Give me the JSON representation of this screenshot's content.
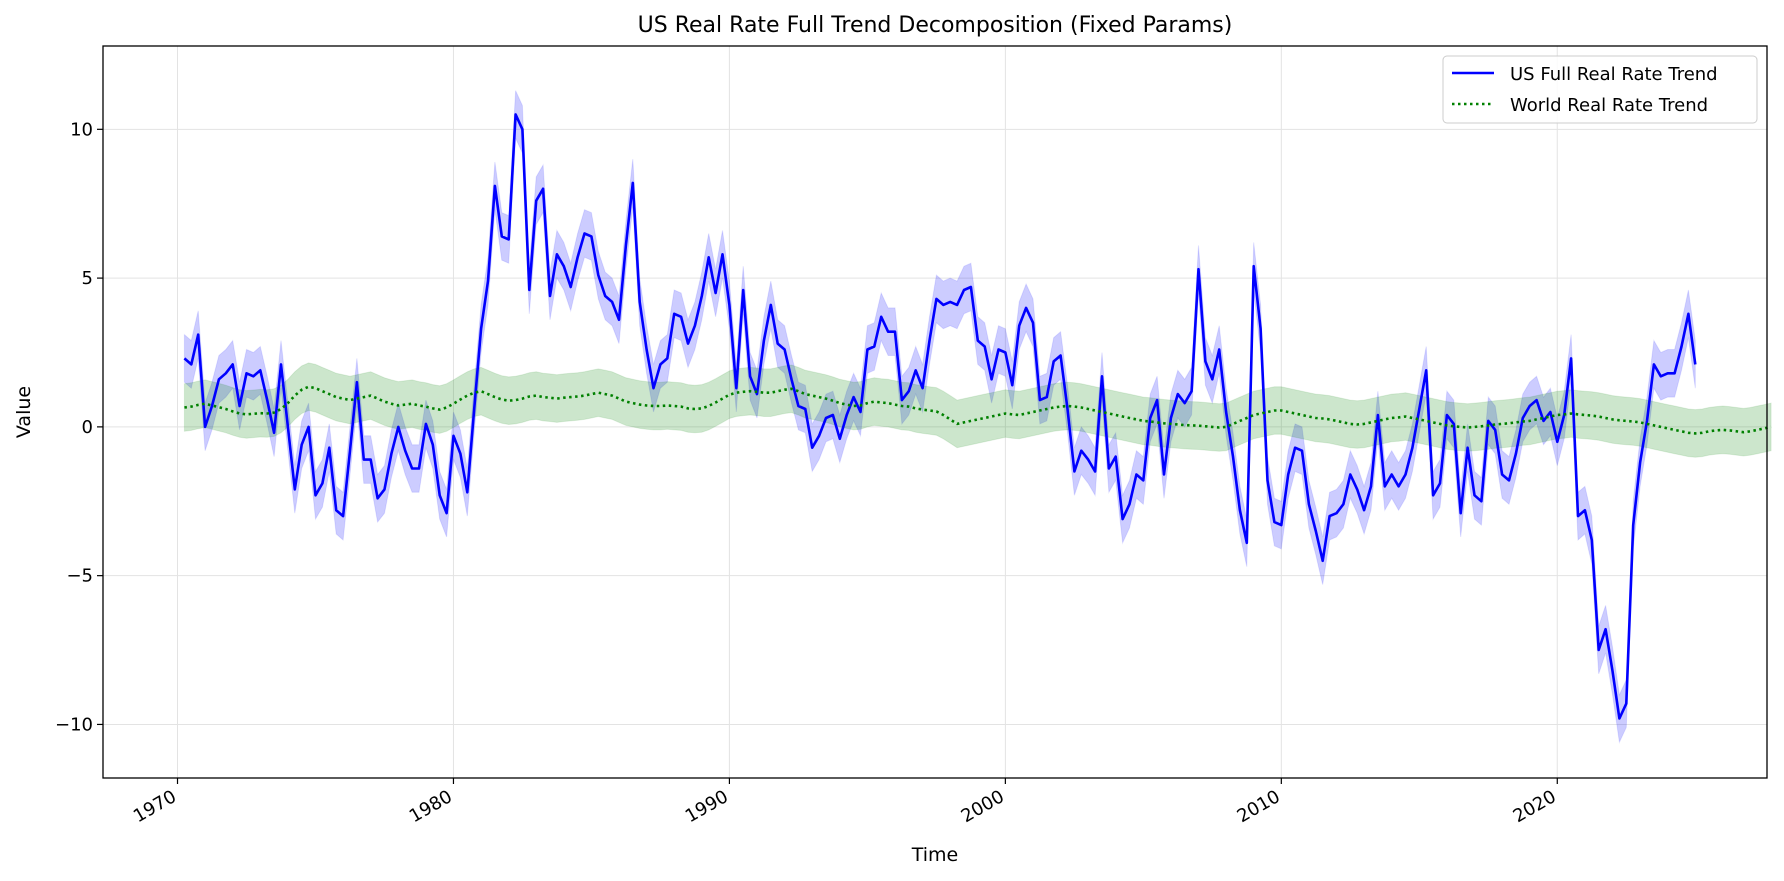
{
  "chart_data": {
    "type": "line",
    "title": "US Real Rate Full Trend Decomposition (Fixed Params)",
    "xlabel": "Time",
    "ylabel": "Value",
    "xlim": [
      1967.3,
      2027.6
    ],
    "ylim": [
      -11.8,
      12.8
    ],
    "x_ticks": [
      1970,
      1980,
      1990,
      2000,
      2010,
      2020
    ],
    "x_tick_labels": [
      "1970",
      "1980",
      "1990",
      "2000",
      "2010",
      "2020"
    ],
    "y_ticks": [
      -10,
      -5,
      0,
      5,
      10
    ],
    "y_tick_labels": [
      "−10",
      "−5",
      "0",
      "5",
      "10"
    ],
    "grid": true,
    "legend_position": "top-right",
    "colors": {
      "us": "#0000ff",
      "us_band": "#0000ff",
      "world": "#008000",
      "world_band": "#008000"
    },
    "series": [
      {
        "name": "US Full Real Rate Trend",
        "style": "solid",
        "color": "#0000ff",
        "x_start": 1970.25,
        "x_step": 0.25,
        "band_half_width": 0.8,
        "values": [
          2.3,
          2.1,
          3.1,
          0.0,
          0.7,
          1.6,
          1.8,
          2.1,
          0.7,
          1.8,
          1.7,
          1.9,
          0.9,
          -0.2,
          2.1,
          0.0,
          -2.1,
          -0.6,
          0.0,
          -2.3,
          -1.9,
          -0.7,
          -2.8,
          -3.0,
          -0.8,
          1.5,
          -1.1,
          -1.1,
          -2.4,
          -2.1,
          -0.9,
          0.0,
          -0.8,
          -1.4,
          -1.4,
          0.1,
          -0.6,
          -2.3,
          -2.9,
          -0.3,
          -0.9,
          -2.2,
          0.6,
          3.3,
          4.9,
          8.1,
          6.4,
          6.3,
          10.5,
          10.0,
          4.6,
          7.6,
          8.0,
          4.4,
          5.8,
          5.4,
          4.7,
          5.7,
          6.5,
          6.4,
          5.1,
          4.4,
          4.2,
          3.6,
          6.1,
          8.2,
          4.2,
          2.6,
          1.3,
          2.1,
          2.3,
          3.8,
          3.7,
          2.8,
          3.4,
          4.4,
          5.7,
          4.5,
          5.8,
          4.1,
          1.3,
          4.6,
          1.7,
          1.1,
          2.9,
          4.1,
          2.8,
          2.6,
          1.6,
          0.7,
          0.6,
          -0.7,
          -0.3,
          0.3,
          0.4,
          -0.4,
          0.4,
          1.0,
          0.5,
          2.6,
          2.7,
          3.7,
          3.2,
          3.2,
          0.9,
          1.2,
          1.9,
          1.3,
          2.9,
          4.3,
          4.1,
          4.2,
          4.1,
          4.6,
          4.7,
          2.9,
          2.7,
          1.6,
          2.6,
          2.5,
          1.4,
          3.4,
          4.0,
          3.5,
          0.9,
          1.0,
          2.2,
          2.4,
          0.6,
          -1.5,
          -0.8,
          -1.1,
          -1.5,
          1.7,
          -1.4,
          -1.0,
          -3.1,
          -2.6,
          -1.6,
          -1.8,
          0.3,
          0.9,
          -1.6,
          0.3,
          1.1,
          0.8,
          1.2,
          5.3,
          2.2,
          1.6,
          2.6,
          0.5,
          -1.0,
          -2.8,
          -3.9,
          5.4,
          3.3,
          -1.8,
          -3.2,
          -3.3,
          -1.6,
          -0.7,
          -0.8,
          -2.6,
          -3.5,
          -4.5,
          -3.0,
          -2.9,
          -2.6,
          -1.6,
          -2.1,
          -2.8,
          -2.0,
          0.4,
          -2.0,
          -1.6,
          -2.0,
          -1.6,
          -0.7,
          0.6,
          1.9,
          -2.3,
          -1.9,
          0.4,
          0.1,
          -2.9,
          -0.7,
          -2.3,
          -2.5,
          0.2,
          -0.1,
          -1.6,
          -1.8,
          -0.9,
          0.3,
          0.7,
          0.9,
          0.2,
          0.5,
          -0.5,
          0.4,
          2.3,
          -3.0,
          -2.8,
          -3.8,
          -7.5,
          -6.8,
          -8.2,
          -9.8,
          -9.3,
          -3.3,
          -1.2,
          0.2,
          2.1,
          1.7,
          1.8,
          1.8,
          2.7,
          3.8,
          2.1
        ]
      },
      {
        "name": "World Real Rate Trend",
        "style": "dotted",
        "color": "#008000",
        "x_start": 1970.25,
        "x_step": 0.25,
        "band_half_width": 0.8,
        "values": [
          0.65,
          0.68,
          0.74,
          0.78,
          0.72,
          0.66,
          0.6,
          0.52,
          0.45,
          0.42,
          0.44,
          0.46,
          0.45,
          0.48,
          0.6,
          0.8,
          1.05,
          1.25,
          1.35,
          1.3,
          1.2,
          1.1,
          1.0,
          0.95,
          0.9,
          0.95,
          1.0,
          1.05,
          0.95,
          0.85,
          0.78,
          0.72,
          0.75,
          0.78,
          0.72,
          0.68,
          0.62,
          0.58,
          0.65,
          0.78,
          0.92,
          1.05,
          1.15,
          1.2,
          1.1,
          1.0,
          0.92,
          0.88,
          0.9,
          0.95,
          1.02,
          1.05,
          1.0,
          0.98,
          0.95,
          0.98,
          1.0,
          1.02,
          1.05,
          1.1,
          1.15,
          1.1,
          1.05,
          0.95,
          0.85,
          0.8,
          0.75,
          0.72,
          0.7,
          0.7,
          0.72,
          0.7,
          0.68,
          0.62,
          0.6,
          0.62,
          0.7,
          0.82,
          0.95,
          1.08,
          1.15,
          1.18,
          1.2,
          1.18,
          1.15,
          1.15,
          1.2,
          1.25,
          1.28,
          1.2,
          1.1,
          1.05,
          1.0,
          0.95,
          0.88,
          0.8,
          0.75,
          0.7,
          0.72,
          0.8,
          0.85,
          0.82,
          0.8,
          0.75,
          0.7,
          0.68,
          0.62,
          0.58,
          0.55,
          0.52,
          0.4,
          0.25,
          0.1,
          0.15,
          0.2,
          0.25,
          0.3,
          0.35,
          0.4,
          0.45,
          0.42,
          0.4,
          0.45,
          0.5,
          0.55,
          0.6,
          0.65,
          0.68,
          0.7,
          0.68,
          0.65,
          0.6,
          0.55,
          0.5,
          0.45,
          0.4,
          0.35,
          0.3,
          0.25,
          0.2,
          0.18,
          0.15,
          0.12,
          0.1,
          0.08,
          0.06,
          0.05,
          0.04,
          0.02,
          0.0,
          -0.02,
          0.0,
          0.1,
          0.2,
          0.3,
          0.4,
          0.45,
          0.5,
          0.55,
          0.55,
          0.5,
          0.45,
          0.4,
          0.35,
          0.3,
          0.28,
          0.25,
          0.2,
          0.15,
          0.1,
          0.08,
          0.1,
          0.15,
          0.2,
          0.25,
          0.3,
          0.32,
          0.35,
          0.3,
          0.25,
          0.2,
          0.15,
          0.1,
          0.05,
          0.02,
          0.0,
          -0.02,
          0.0,
          0.02,
          0.05,
          0.08,
          0.1,
          0.12,
          0.15,
          0.18,
          0.2,
          0.25,
          0.3,
          0.35,
          0.4,
          0.42,
          0.45,
          0.42,
          0.4,
          0.38,
          0.35,
          0.3,
          0.25,
          0.22,
          0.2,
          0.18,
          0.15,
          0.1,
          0.05,
          0.0,
          -0.05,
          -0.1,
          -0.15,
          -0.2,
          -0.22,
          -0.2,
          -0.15,
          -0.12,
          -0.1,
          -0.12,
          -0.15,
          -0.18,
          -0.15,
          -0.1,
          -0.05,
          0.0
        ]
      }
    ]
  }
}
